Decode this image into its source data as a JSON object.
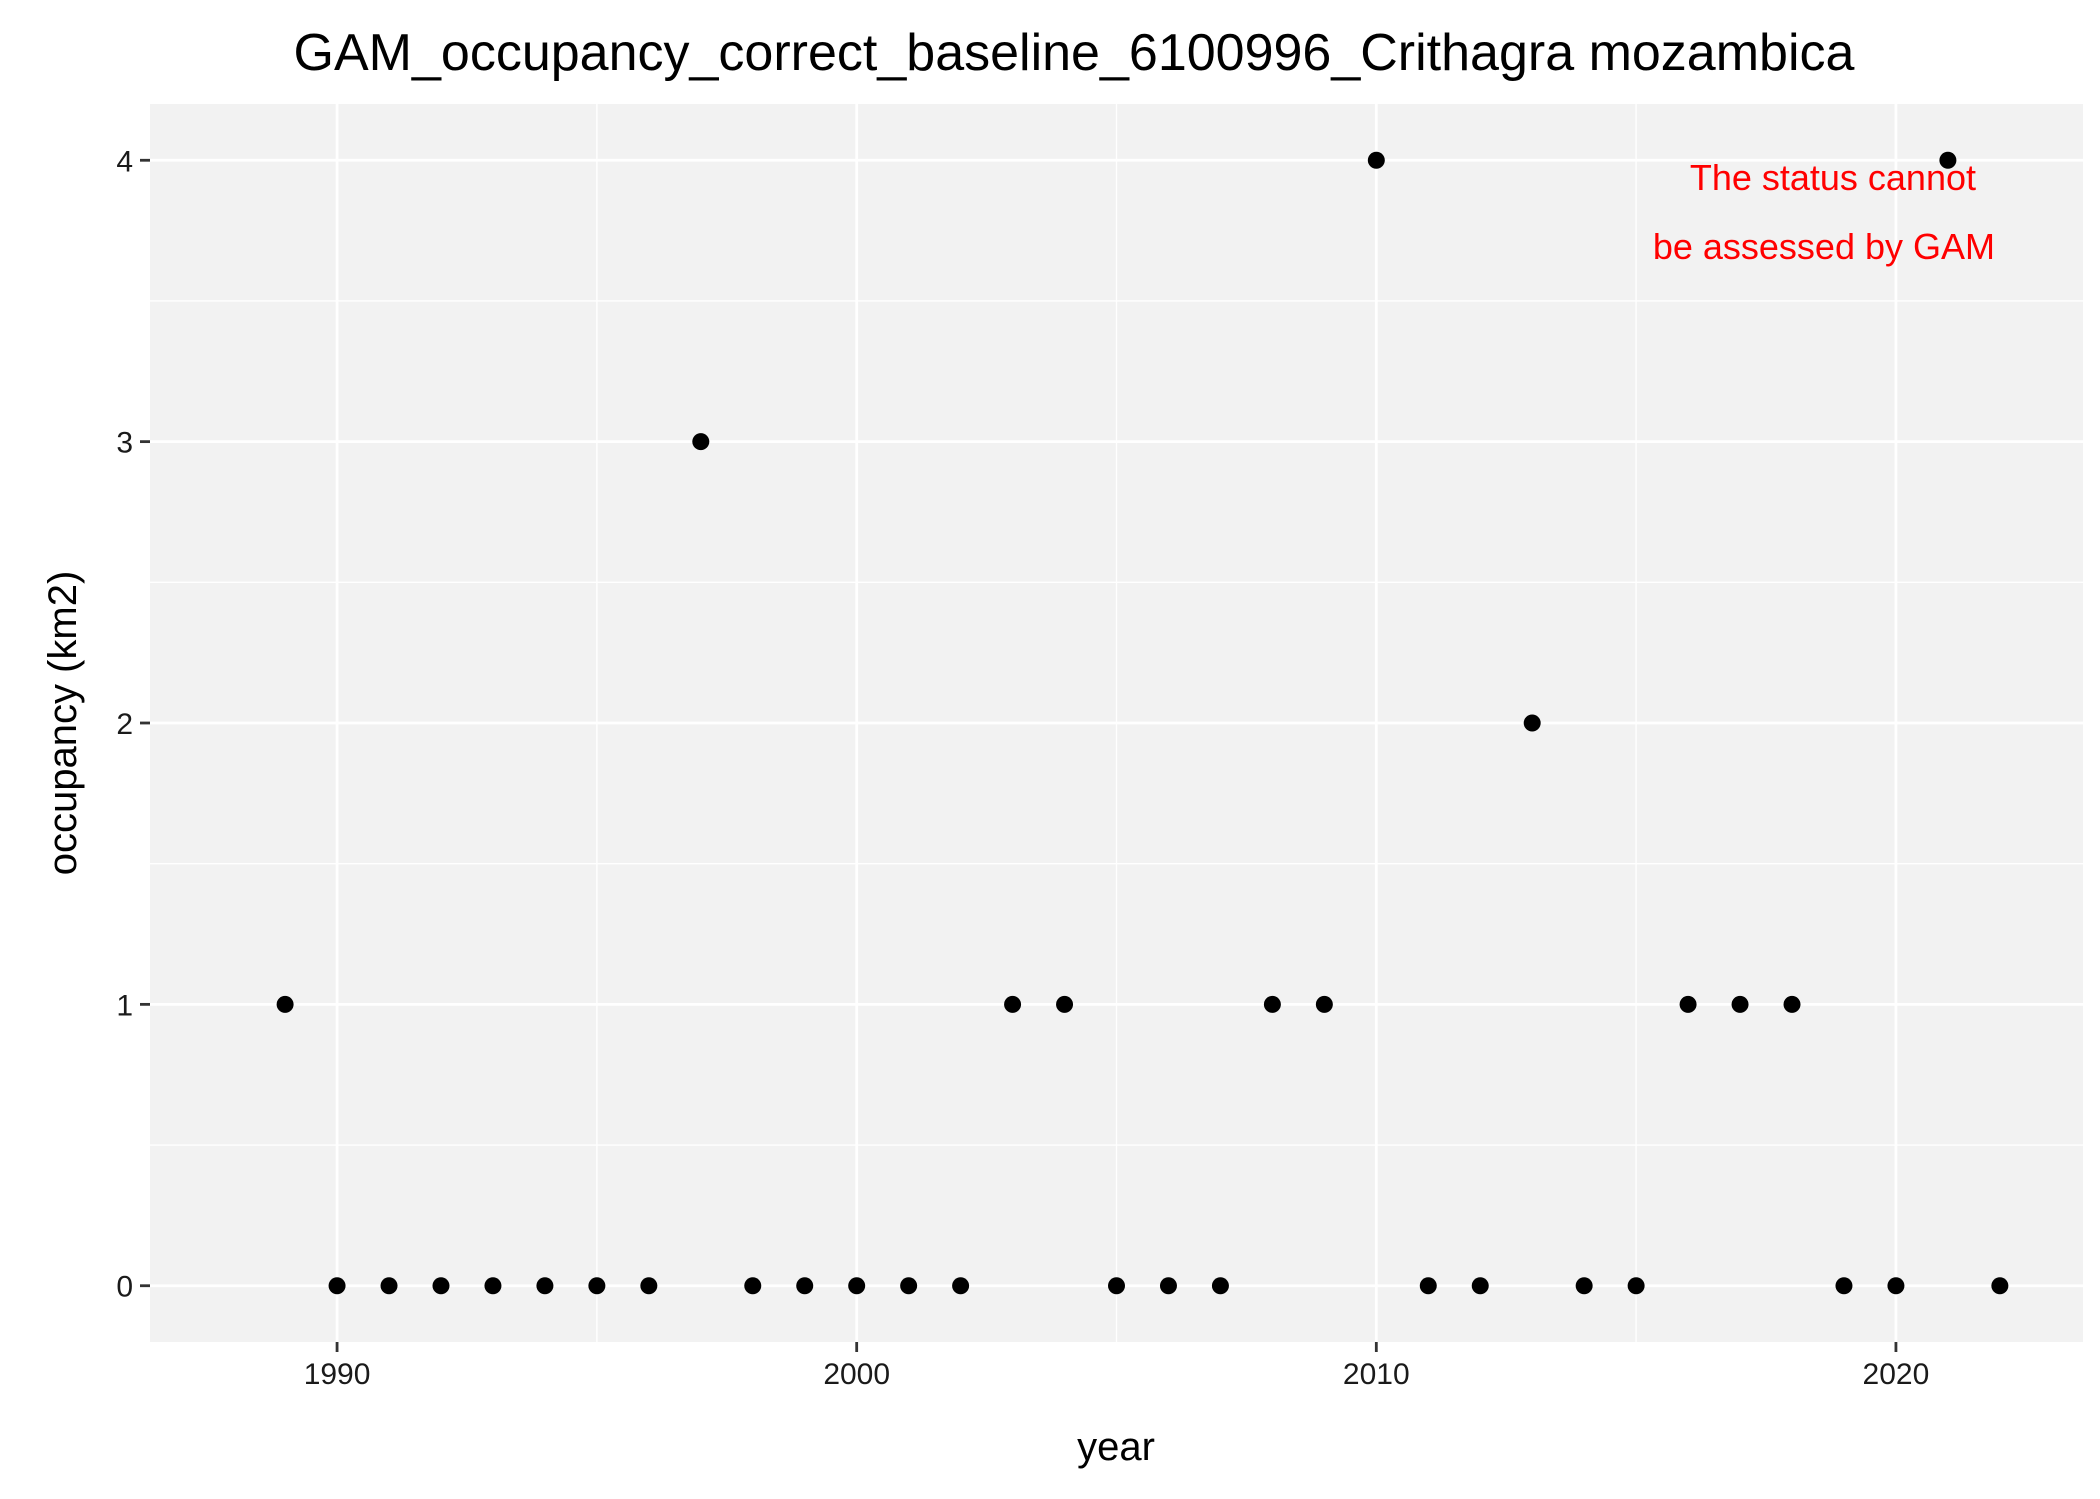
{
  "chart_data": {
    "type": "scatter",
    "title": "GAM_occupancy_correct_baseline_6100996_Crithagra mozambica",
    "xlabel": "year",
    "ylabel": "occupancy (km2)",
    "xlim": [
      1986.4,
      2023.6
    ],
    "ylim": [
      -0.2,
      4.2
    ],
    "x_ticks": [
      1990,
      2000,
      2010,
      2020
    ],
    "x_tick_labels": [
      "1990",
      "2000",
      "2010",
      "2020"
    ],
    "y_ticks": [
      0,
      1,
      2,
      3,
      4
    ],
    "y_tick_labels": [
      "0",
      "1",
      "2",
      "3",
      "4"
    ],
    "grid": true,
    "legend": "none",
    "annotation": {
      "lines": [
        "The status cannot",
        "be assessed by GAM"
      ],
      "color": "#ff0000"
    },
    "colors": {
      "panel_background": "#f2f2f2",
      "grid": "#ffffff",
      "point": "#000000"
    },
    "points": [
      {
        "x": 1989,
        "y": 1
      },
      {
        "x": 1990,
        "y": 0
      },
      {
        "x": 1991,
        "y": 0
      },
      {
        "x": 1992,
        "y": 0
      },
      {
        "x": 1993,
        "y": 0
      },
      {
        "x": 1994,
        "y": 0
      },
      {
        "x": 1995,
        "y": 0
      },
      {
        "x": 1996,
        "y": 0
      },
      {
        "x": 1997,
        "y": 3
      },
      {
        "x": 1998,
        "y": 0
      },
      {
        "x": 1999,
        "y": 0
      },
      {
        "x": 2000,
        "y": 0
      },
      {
        "x": 2001,
        "y": 0
      },
      {
        "x": 2002,
        "y": 0
      },
      {
        "x": 2003,
        "y": 1
      },
      {
        "x": 2004,
        "y": 1
      },
      {
        "x": 2005,
        "y": 0
      },
      {
        "x": 2006,
        "y": 0
      },
      {
        "x": 2007,
        "y": 0
      },
      {
        "x": 2008,
        "y": 1
      },
      {
        "x": 2009,
        "y": 1
      },
      {
        "x": 2010,
        "y": 4
      },
      {
        "x": 2011,
        "y": 0
      },
      {
        "x": 2012,
        "y": 0
      },
      {
        "x": 2013,
        "y": 2
      },
      {
        "x": 2014,
        "y": 0
      },
      {
        "x": 2015,
        "y": 0
      },
      {
        "x": 2016,
        "y": 1
      },
      {
        "x": 2017,
        "y": 1
      },
      {
        "x": 2018,
        "y": 1
      },
      {
        "x": 2019,
        "y": 0
      },
      {
        "x": 2020,
        "y": 0
      },
      {
        "x": 2021,
        "y": 4
      },
      {
        "x": 2022,
        "y": 0
      }
    ]
  }
}
